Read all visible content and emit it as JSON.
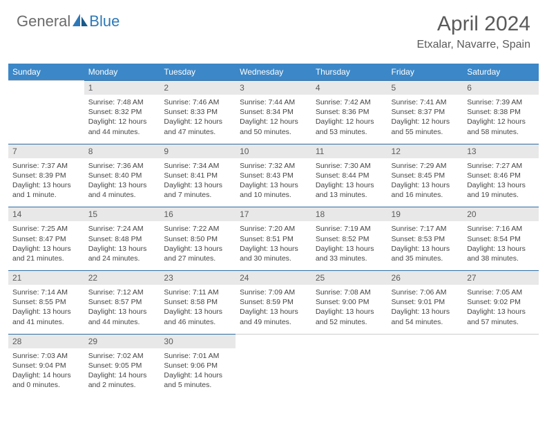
{
  "logo": {
    "general": "General",
    "blue": "Blue"
  },
  "title": "April 2024",
  "location": "Etxalar, Navarre, Spain",
  "colors": {
    "header_bg": "#3c87c7",
    "header_text": "#ffffff",
    "daynum_bg": "#e8e8e8",
    "daynum_border": "#2e6da4",
    "text": "#444444",
    "logo_gray": "#6b6b6b",
    "logo_blue": "#2e78b7"
  },
  "weekdays": [
    "Sunday",
    "Monday",
    "Tuesday",
    "Wednesday",
    "Thursday",
    "Friday",
    "Saturday"
  ],
  "weeks": [
    {
      "nums": [
        "",
        "1",
        "2",
        "3",
        "4",
        "5",
        "6"
      ],
      "info": [
        "",
        "Sunrise: 7:48 AM\nSunset: 8:32 PM\nDaylight: 12 hours and 44 minutes.",
        "Sunrise: 7:46 AM\nSunset: 8:33 PM\nDaylight: 12 hours and 47 minutes.",
        "Sunrise: 7:44 AM\nSunset: 8:34 PM\nDaylight: 12 hours and 50 minutes.",
        "Sunrise: 7:42 AM\nSunset: 8:36 PM\nDaylight: 12 hours and 53 minutes.",
        "Sunrise: 7:41 AM\nSunset: 8:37 PM\nDaylight: 12 hours and 55 minutes.",
        "Sunrise: 7:39 AM\nSunset: 8:38 PM\nDaylight: 12 hours and 58 minutes."
      ]
    },
    {
      "nums": [
        "7",
        "8",
        "9",
        "10",
        "11",
        "12",
        "13"
      ],
      "info": [
        "Sunrise: 7:37 AM\nSunset: 8:39 PM\nDaylight: 13 hours and 1 minute.",
        "Sunrise: 7:36 AM\nSunset: 8:40 PM\nDaylight: 13 hours and 4 minutes.",
        "Sunrise: 7:34 AM\nSunset: 8:41 PM\nDaylight: 13 hours and 7 minutes.",
        "Sunrise: 7:32 AM\nSunset: 8:43 PM\nDaylight: 13 hours and 10 minutes.",
        "Sunrise: 7:30 AM\nSunset: 8:44 PM\nDaylight: 13 hours and 13 minutes.",
        "Sunrise: 7:29 AM\nSunset: 8:45 PM\nDaylight: 13 hours and 16 minutes.",
        "Sunrise: 7:27 AM\nSunset: 8:46 PM\nDaylight: 13 hours and 19 minutes."
      ]
    },
    {
      "nums": [
        "14",
        "15",
        "16",
        "17",
        "18",
        "19",
        "20"
      ],
      "info": [
        "Sunrise: 7:25 AM\nSunset: 8:47 PM\nDaylight: 13 hours and 21 minutes.",
        "Sunrise: 7:24 AM\nSunset: 8:48 PM\nDaylight: 13 hours and 24 minutes.",
        "Sunrise: 7:22 AM\nSunset: 8:50 PM\nDaylight: 13 hours and 27 minutes.",
        "Sunrise: 7:20 AM\nSunset: 8:51 PM\nDaylight: 13 hours and 30 minutes.",
        "Sunrise: 7:19 AM\nSunset: 8:52 PM\nDaylight: 13 hours and 33 minutes.",
        "Sunrise: 7:17 AM\nSunset: 8:53 PM\nDaylight: 13 hours and 35 minutes.",
        "Sunrise: 7:16 AM\nSunset: 8:54 PM\nDaylight: 13 hours and 38 minutes."
      ]
    },
    {
      "nums": [
        "21",
        "22",
        "23",
        "24",
        "25",
        "26",
        "27"
      ],
      "info": [
        "Sunrise: 7:14 AM\nSunset: 8:55 PM\nDaylight: 13 hours and 41 minutes.",
        "Sunrise: 7:12 AM\nSunset: 8:57 PM\nDaylight: 13 hours and 44 minutes.",
        "Sunrise: 7:11 AM\nSunset: 8:58 PM\nDaylight: 13 hours and 46 minutes.",
        "Sunrise: 7:09 AM\nSunset: 8:59 PM\nDaylight: 13 hours and 49 minutes.",
        "Sunrise: 7:08 AM\nSunset: 9:00 PM\nDaylight: 13 hours and 52 minutes.",
        "Sunrise: 7:06 AM\nSunset: 9:01 PM\nDaylight: 13 hours and 54 minutes.",
        "Sunrise: 7:05 AM\nSunset: 9:02 PM\nDaylight: 13 hours and 57 minutes."
      ]
    },
    {
      "nums": [
        "28",
        "29",
        "30",
        "",
        "",
        "",
        ""
      ],
      "info": [
        "Sunrise: 7:03 AM\nSunset: 9:04 PM\nDaylight: 14 hours and 0 minutes.",
        "Sunrise: 7:02 AM\nSunset: 9:05 PM\nDaylight: 14 hours and 2 minutes.",
        "Sunrise: 7:01 AM\nSunset: 9:06 PM\nDaylight: 14 hours and 5 minutes.",
        "",
        "",
        "",
        ""
      ]
    }
  ]
}
